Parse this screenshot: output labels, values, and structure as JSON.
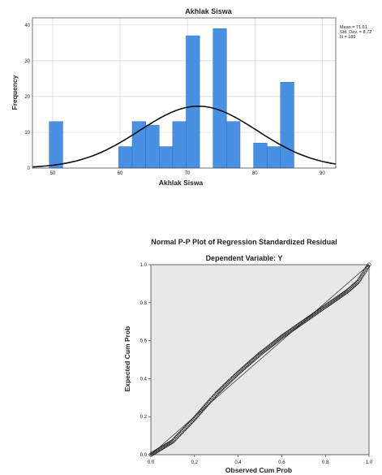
{
  "chart_data": [
    {
      "type": "bar",
      "title": "Akhlak Siswa",
      "xlabel": "Akhlak Siswa",
      "ylabel": "Frequency",
      "xlim": [
        47,
        92
      ],
      "ylim": [
        0,
        42
      ],
      "xticks": [
        50,
        60,
        70,
        80,
        90
      ],
      "yticks": [
        0,
        10,
        20,
        30,
        40
      ],
      "grid": "y",
      "bars": [
        {
          "x0": 49.5,
          "x1": 51.5,
          "value": 13
        },
        {
          "x0": 59.8,
          "x1": 61.8,
          "value": 6
        },
        {
          "x0": 61.8,
          "x1": 63.8,
          "value": 13
        },
        {
          "x0": 63.8,
          "x1": 65.8,
          "value": 12
        },
        {
          "x0": 65.8,
          "x1": 67.8,
          "value": 6
        },
        {
          "x0": 67.8,
          "x1": 69.8,
          "value": 13
        },
        {
          "x0": 69.8,
          "x1": 71.8,
          "value": 37
        },
        {
          "x0": 73.8,
          "x1": 75.8,
          "value": 39
        },
        {
          "x0": 75.8,
          "x1": 77.8,
          "value": 13
        },
        {
          "x0": 79.8,
          "x1": 81.8,
          "value": 7
        },
        {
          "x0": 81.8,
          "x1": 83.8,
          "value": 6
        },
        {
          "x0": 83.8,
          "x1": 85.8,
          "value": 24
        }
      ],
      "stats": {
        "mean_label": "Mean = 71.61",
        "sd_label": "Std. Dev. = 8.72",
        "n_label": "N = 189"
      },
      "normal_curve": {
        "mean": 71.61,
        "sd": 8.72,
        "n": 189,
        "bin_width": 2
      },
      "legend_position": "top-right",
      "colors": {
        "bar": "#4a90e2",
        "bar_edge": "#2f6db8",
        "curve": "#111111"
      }
    },
    {
      "type": "scatter",
      "title": "Normal P-P Plot of Regression Standardized Residual",
      "subtitle": "Dependent Variable: Y",
      "xlabel": "Observed Cum Prob",
      "ylabel": "Expected Cum Prob",
      "xlim": [
        0,
        1
      ],
      "ylim": [
        0,
        1
      ],
      "xticks": [
        "0.0",
        "0.2",
        "0.4",
        "0.6",
        "0.8",
        "1.0"
      ],
      "yticks": [
        "0.0",
        "0.2",
        "0.4",
        "0.6",
        "0.8",
        "1.0"
      ],
      "reference_line": [
        [
          0,
          0
        ],
        [
          1,
          1
        ]
      ],
      "curve_anchors": [
        [
          0,
          0
        ],
        [
          0.1,
          0.07
        ],
        [
          0.2,
          0.19
        ],
        [
          0.3,
          0.32
        ],
        [
          0.4,
          0.43
        ],
        [
          0.5,
          0.53
        ],
        [
          0.6,
          0.62
        ],
        [
          0.7,
          0.7
        ],
        [
          0.8,
          0.78
        ],
        [
          0.9,
          0.86
        ],
        [
          0.95,
          0.91
        ],
        [
          1,
          1
        ]
      ],
      "n_points": 189,
      "colors": {
        "background": "#e8e8e8",
        "points": "#222222",
        "line": "#333333"
      }
    }
  ]
}
